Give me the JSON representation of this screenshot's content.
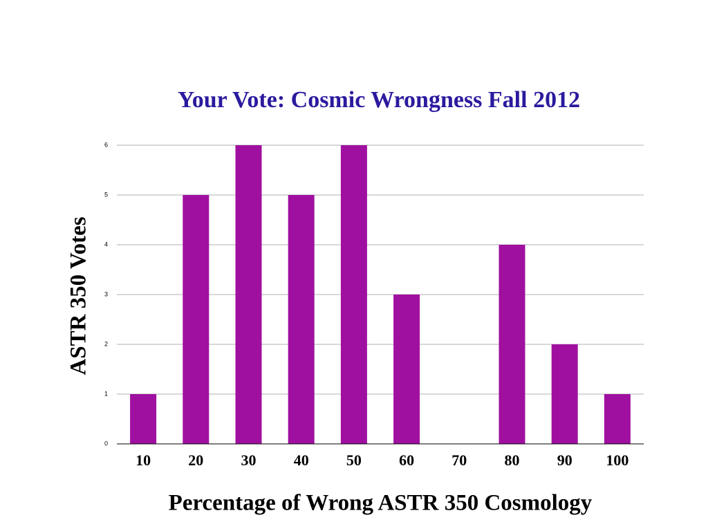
{
  "chart_data": {
    "type": "bar",
    "title": "Your Vote:  Cosmic Wrongness Fall 2012",
    "x_label": "Percentage of Wrong ASTR 350 Cosmology",
    "y_label": "ASTR 350 Votes",
    "categories": [
      "10",
      "20",
      "30",
      "40",
      "50",
      "60",
      "70",
      "80",
      "90",
      "100"
    ],
    "values": [
      1,
      5,
      6,
      5,
      6,
      3,
      0,
      4,
      2,
      1
    ],
    "color": "#a010a0",
    "ylim": [
      0,
      6
    ],
    "yticks": [
      0,
      1,
      2,
      3,
      4,
      5,
      6
    ],
    "grid": true
  }
}
